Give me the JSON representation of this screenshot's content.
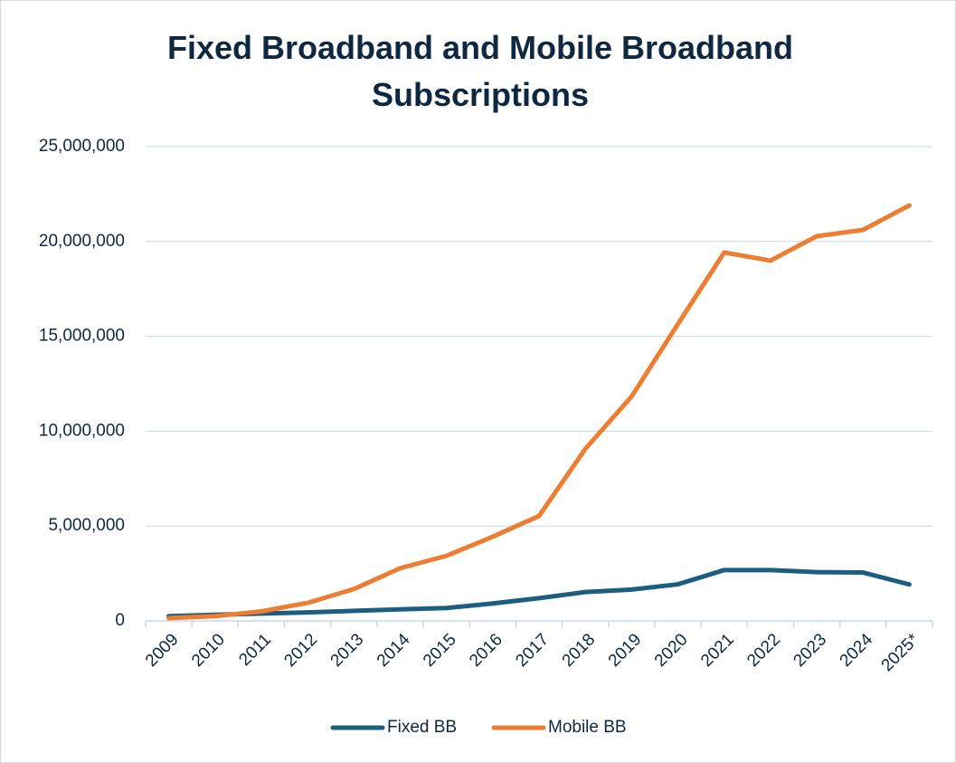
{
  "chart_data": {
    "type": "line",
    "title": "Fixed Broadband and Mobile Broadband Subscriptions",
    "categories": [
      "2009",
      "2010",
      "2011",
      "2012",
      "2013",
      "2014",
      "2015",
      "2016",
      "2017",
      "2018",
      "2019",
      "2020",
      "2021",
      "2022",
      "2023",
      "2024",
      "2025*"
    ],
    "series": [
      {
        "name": "Fixed BB",
        "color": "#1b5e80",
        "values": [
          250000,
          320000,
          390000,
          450000,
          530000,
          610000,
          680000,
          920000,
          1200000,
          1520000,
          1650000,
          1930000,
          2680000,
          2680000,
          2570000,
          2550000,
          1920000
        ]
      },
      {
        "name": "Mobile BB",
        "color": "#ed7d31",
        "values": [
          150000,
          250000,
          500000,
          950000,
          1680000,
          2780000,
          3430000,
          4440000,
          5530000,
          9070000,
          11830000,
          15650000,
          19420000,
          18990000,
          20280000,
          20610000,
          21900000
        ]
      }
    ],
    "ylim": [
      0,
      25000000
    ],
    "yticks": [
      0,
      {
        "value": 5000000,
        "label": "5,000,000"
      },
      {
        "value": 10000000,
        "label": "10,000,000"
      },
      {
        "value": 15000000,
        "label": "15,000,000"
      },
      {
        "value": 20000000,
        "label": "20,000,000"
      },
      {
        "value": 25000000,
        "label": "25,000,000"
      }
    ],
    "grid": true,
    "legend": "bottom"
  }
}
